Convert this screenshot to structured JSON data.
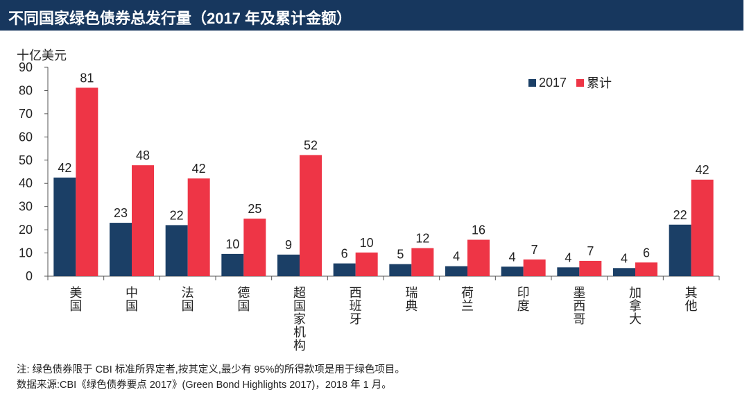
{
  "title": "不同国家绿色债券总发行量（2017 年及累计金额）",
  "colors": {
    "title_bg": "#17375e",
    "series_2017": "#1b3f66",
    "series_cumulative": "#ee3546"
  },
  "chart_data": {
    "type": "bar",
    "title": "不同国家绿色债券总发行量（2017 年及累计金额）",
    "ylabel": "十亿美元",
    "xlabel": "",
    "ylim": [
      0,
      90
    ],
    "yticks": [
      0,
      10,
      20,
      30,
      40,
      50,
      60,
      70,
      80,
      90
    ],
    "legend_position": "top-right",
    "categories": [
      "美国",
      "中国",
      "法国",
      "德国",
      "超国家机构",
      "西班牙",
      "瑞典",
      "荷兰",
      "印度",
      "墨西哥",
      "加拿大",
      "其他"
    ],
    "series": [
      {
        "name": "2017",
        "values": [
          42,
          23,
          22,
          10,
          9,
          6,
          5,
          4,
          4,
          4,
          4,
          22
        ],
        "bar_values": [
          42.5,
          23,
          22,
          9.6,
          9.3,
          5.5,
          5.2,
          4.3,
          4.1,
          3.8,
          3.5,
          22.2
        ]
      },
      {
        "name": "累计",
        "values": [
          81,
          48,
          42,
          25,
          52,
          10,
          12,
          16,
          7,
          7,
          6,
          42
        ],
        "bar_values": [
          81.2,
          47.8,
          42.1,
          24.8,
          52.2,
          10.2,
          12.1,
          15.7,
          7.2,
          6.6,
          5.9,
          41.6
        ]
      }
    ]
  },
  "notes": {
    "line1": "注: 绿色债券限于 CBI 标准所界定者,按其定义,最少有 95%的所得款项是用于绿色项目。",
    "line2": "数据来源:CBI《绿色债券要点 2017》(Green Bond Highlights 2017)，2018 年 1 月。"
  }
}
